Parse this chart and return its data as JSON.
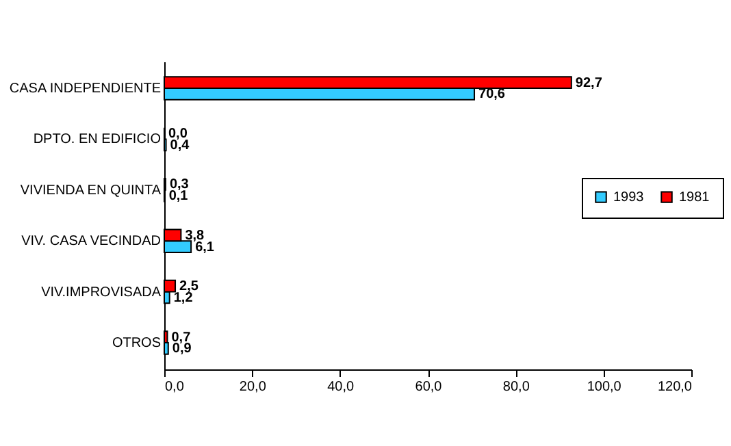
{
  "chart_data": {
    "type": "bar",
    "orientation": "horizontal",
    "categories": [
      "CASA INDEPENDIENTE",
      "DPTO. EN EDIFICIO",
      "VIVIENDA EN QUINTA",
      "VIV. CASA VECINDAD",
      "VIV.IMPROVISADA",
      "OTROS"
    ],
    "series": [
      {
        "name": "1993",
        "color": "#33ccff",
        "values": [
          70.6,
          0.4,
          0.1,
          6.1,
          1.2,
          0.9
        ],
        "value_labels": [
          "70,6",
          "0,4",
          "0,1",
          "6,1",
          "1,2",
          "0,9"
        ]
      },
      {
        "name": "1981",
        "color": "#ff0000",
        "values": [
          92.7,
          0.0,
          0.3,
          3.8,
          2.5,
          0.7
        ],
        "value_labels": [
          "92,7",
          "0,0",
          "0,3",
          "3,8",
          "2,5",
          "0,7"
        ]
      }
    ],
    "xlim": [
      0,
      120
    ],
    "xticks": [
      {
        "value": 0,
        "label": "0,0"
      },
      {
        "value": 20,
        "label": "20,0"
      },
      {
        "value": 40,
        "label": "40,0"
      },
      {
        "value": 60,
        "label": "60,0"
      },
      {
        "value": 80,
        "label": "80,0"
      },
      {
        "value": 100,
        "label": "100,0"
      },
      {
        "value": 120,
        "label": "120,0"
      }
    ],
    "grid": false,
    "legend": "right"
  }
}
